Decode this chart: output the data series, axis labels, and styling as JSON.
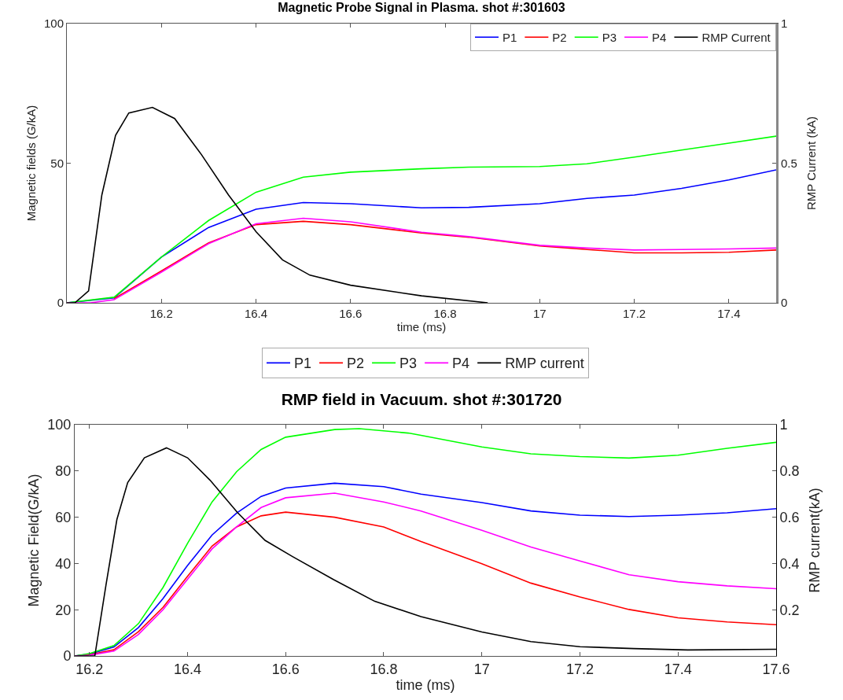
{
  "chart_data": [
    {
      "type": "line",
      "title": "Magnetic Probe Signal in Plasma. shot #:301603",
      "xlabel": "time (ms)",
      "ylabel": "Magnetic fields (G/kA)",
      "y2label": "RMP Current (kA)",
      "xlim": [
        16,
        17.5
      ],
      "xticks": [
        16.2,
        16.4,
        16.6,
        16.8,
        17,
        17.2,
        17.4
      ],
      "ylim": [
        0,
        100
      ],
      "yticks": [
        0,
        50,
        100
      ],
      "y2lim": [
        0,
        1
      ],
      "y2ticks": [
        0,
        0.5,
        1
      ],
      "grid": false,
      "legend": "top right",
      "marker": "none",
      "line_style": "solid",
      "series": [
        {
          "name": "P1",
          "color": "#0000ff",
          "x": [
            16,
            16.1,
            16.2,
            16.3,
            16.4,
            16.5,
            16.6,
            16.75,
            16.85,
            17,
            17.1,
            17.2,
            17.3,
            17.4,
            17.5
          ],
          "values": [
            0,
            1.8,
            16.4,
            27,
            33.5,
            35.9,
            35.5,
            34,
            34.2,
            35.5,
            37.4,
            38.6,
            41,
            44,
            47.6
          ]
        },
        {
          "name": "P2",
          "color": "#ff0000",
          "x": [
            16.1,
            16.2,
            16.3,
            16.4,
            16.5,
            16.6,
            16.75,
            16.85,
            17,
            17.1,
            17.2,
            17.3,
            17.4,
            17.5
          ],
          "values": [
            1.5,
            11.4,
            21.5,
            28,
            29.2,
            28,
            25,
            23.5,
            20.4,
            19.1,
            17.9,
            17.9,
            18.1,
            18.9
          ]
        },
        {
          "name": "P3",
          "color": "#00ff00",
          "x": [
            16,
            16.1,
            16.2,
            16.3,
            16.4,
            16.5,
            16.6,
            16.75,
            16.85,
            17,
            17.1,
            17.2,
            17.3,
            17.4,
            17.5
          ],
          "values": [
            0,
            2,
            16.4,
            29.5,
            39.6,
            45,
            46.8,
            48,
            48.6,
            48.8,
            49.8,
            52.2,
            54.7,
            57.2,
            59.7
          ]
        },
        {
          "name": "P4",
          "color": "#ff00ff",
          "x": [
            16,
            16.05,
            16.1,
            16.2,
            16.3,
            16.4,
            16.5,
            16.6,
            16.75,
            16.85,
            17,
            17.1,
            17.2,
            17.3,
            17.4,
            17.5
          ],
          "values": [
            0,
            0,
            1.1,
            11,
            21.2,
            28.3,
            30.3,
            29,
            25.3,
            23.7,
            20.6,
            19.6,
            18.9,
            19.1,
            19.3,
            19.6
          ]
        },
        {
          "name": "RMP Current",
          "color": "#000000",
          "axis": "y2",
          "x": [
            16,
            16.017,
            16.046,
            16.074,
            16.103,
            16.131,
            16.181,
            16.228,
            16.285,
            16.342,
            16.4,
            16.456,
            16.514,
            16.6,
            16.75,
            16.89
          ],
          "values": [
            0,
            0,
            0.043,
            0.386,
            0.6,
            0.68,
            0.7,
            0.66,
            0.53,
            0.386,
            0.255,
            0.154,
            0.099,
            0.063,
            0.025,
            0
          ]
        }
      ]
    },
    {
      "type": "line",
      "title": "RMP field in Vacuum. shot #:301720",
      "xlabel": "time (ms)",
      "ylabel": "Magnetic Field(G/kA)",
      "y2label": "RMP current(kA)",
      "xlim": [
        16.17,
        17.6
      ],
      "xticks": [
        16.2,
        16.4,
        16.6,
        16.8,
        17,
        17.2,
        17.4,
        17.6
      ],
      "ylim": [
        0,
        100
      ],
      "yticks": [
        0,
        20,
        40,
        60,
        80,
        100
      ],
      "y2lim": [
        0,
        1
      ],
      "y2ticks": [
        0.2,
        0.4,
        0.6,
        0.8,
        1
      ],
      "grid": false,
      "legend": "top",
      "marker": "none",
      "line_style": "solid",
      "series": [
        {
          "name": "P1",
          "color": "#0000ff",
          "x": [
            16.17,
            16.2,
            16.25,
            16.3,
            16.35,
            16.4,
            16.45,
            16.5,
            16.55,
            16.6,
            16.7,
            16.8,
            16.876,
            17,
            17.1,
            17.2,
            17.3,
            17.4,
            17.5,
            17.6
          ],
          "values": [
            0,
            0.8,
            3.9,
            12.3,
            24.8,
            39.1,
            52.3,
            61.8,
            69,
            72.6,
            74.7,
            73.2,
            70,
            66.3,
            62.7,
            60.9,
            60.3,
            60.9,
            61.9,
            63.7
          ]
        },
        {
          "name": "P2",
          "color": "#ff0000",
          "x": [
            16.17,
            16.2,
            16.25,
            16.3,
            16.35,
            16.4,
            16.45,
            16.5,
            16.55,
            16.6,
            16.7,
            16.8,
            16.876,
            17,
            17.1,
            17.2,
            17.3,
            17.4,
            17.5,
            17.6
          ],
          "values": [
            0,
            0.5,
            2.7,
            10.5,
            21,
            34.4,
            47.5,
            55.8,
            60.6,
            62.2,
            60,
            55.8,
            49.5,
            39.9,
            31.5,
            25.5,
            20.1,
            16.5,
            14.7,
            13.5
          ]
        },
        {
          "name": "P3",
          "color": "#00ff00",
          "x": [
            16.17,
            16.2,
            16.25,
            16.3,
            16.35,
            16.4,
            16.45,
            16.5,
            16.55,
            16.6,
            16.7,
            16.75,
            16.85,
            16.876,
            17,
            17.1,
            17.2,
            17.3,
            17.4,
            17.5,
            17.6
          ],
          "values": [
            0,
            1,
            4.5,
            14,
            29.6,
            48.7,
            66.6,
            79.7,
            89.3,
            94.6,
            97.9,
            98.3,
            96.4,
            95.4,
            90.4,
            87.4,
            86.2,
            85.6,
            86.8,
            89.8,
            92.4
          ]
        },
        {
          "name": "P4",
          "color": "#ff00ff",
          "x": [
            16.17,
            16.2,
            16.25,
            16.3,
            16.35,
            16.4,
            16.45,
            16.5,
            16.55,
            16.6,
            16.7,
            16.8,
            16.876,
            17,
            17.1,
            17.2,
            17.3,
            17.4,
            17.5,
            17.6
          ],
          "values": [
            0,
            0.3,
            2.1,
            9.3,
            20,
            33.2,
            46.3,
            55.8,
            64.2,
            68.4,
            70.4,
            66.6,
            62.7,
            54.3,
            47.1,
            41.1,
            35.1,
            32.1,
            30.3,
            29.1
          ]
        },
        {
          "name": "RMP current",
          "color": "#000000",
          "axis": "y2",
          "x": [
            16.17,
            16.211,
            16.234,
            16.256,
            16.278,
            16.312,
            16.357,
            16.4,
            16.446,
            16.502,
            16.558,
            16.614,
            16.698,
            16.782,
            16.876,
            17,
            17.1,
            17.2,
            17.31,
            17.42,
            17.6
          ],
          "values": [
            0,
            0,
            0.31,
            0.59,
            0.75,
            0.857,
            0.9,
            0.857,
            0.76,
            0.62,
            0.5,
            0.43,
            0.33,
            0.236,
            0.17,
            0.104,
            0.062,
            0.04,
            0.032,
            0.026,
            0.029
          ]
        }
      ]
    }
  ]
}
